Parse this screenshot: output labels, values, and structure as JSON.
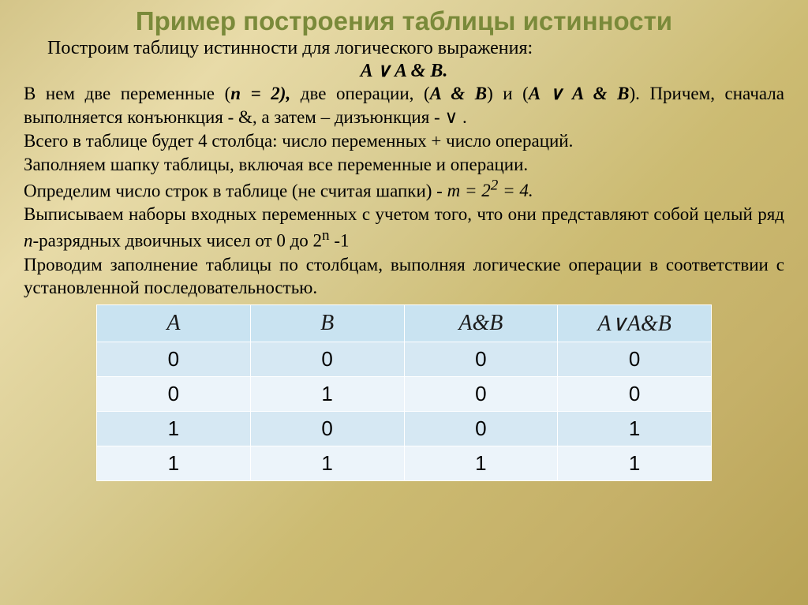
{
  "title": "Пример построения таблицы истинности",
  "intro": "Построим таблицу истинности для логического выражения:",
  "formula": "A ∨ A & B.",
  "p1a": "В нем две переменные  (",
  "p1b": "n = 2),",
  "p1c": " две операции, (",
  "p1d": "A & B",
  "p1e": ") и (",
  "p1f": "A ∨ A & B",
  "p1g": "). Причем, сначала выполняется конъюнкция  - &, а затем – дизъюнкция - ∨ .",
  "p2": "Всего в таблице будет 4 столбца: число переменных + число операций.",
  "p3": "Заполняем шапку таблицы, включая все переменные и операции.",
  "p4a": "Определим число строк в таблице (не считая шапки) -  ",
  "p4b": "m = 2",
  "p4sup": "2",
  "p4c": " = 4.",
  "p5a": "Выписываем наборы входных переменных с учетом того, что они представляют собой целый ряд  ",
  "p5n": "n",
  "p5b": "-разрядных двоичных чисел от  0 до  2",
  "p5sup": "n",
  "p5c": " -1",
  "p6": "Проводим заполнение таблицы по столбцам, выполняя логические операции в соответствии с установленной последовательностью.",
  "table": {
    "columns": [
      "A",
      "B",
      "A&B",
      "A∨A&B"
    ],
    "rows": [
      [
        "0",
        "0",
        "0",
        "0"
      ],
      [
        "0",
        "1",
        "0",
        "0"
      ],
      [
        "1",
        "0",
        "0",
        "1"
      ],
      [
        "1",
        "1",
        "1",
        "1"
      ]
    ],
    "header_bg": "#c9e3f1",
    "row_odd_bg": "#d6e8f3",
    "row_even_bg": "#ecf4fa",
    "border_color": "#ffffff",
    "header_fontsize": 28,
    "cell_fontsize": 26
  },
  "colors": {
    "title": "#7a8a3a",
    "text": "#000000",
    "bg_gradient": [
      "#d4c589",
      "#e8dba8",
      "#d9cc92",
      "#ccbb72",
      "#c5b068",
      "#b8a355"
    ]
  }
}
